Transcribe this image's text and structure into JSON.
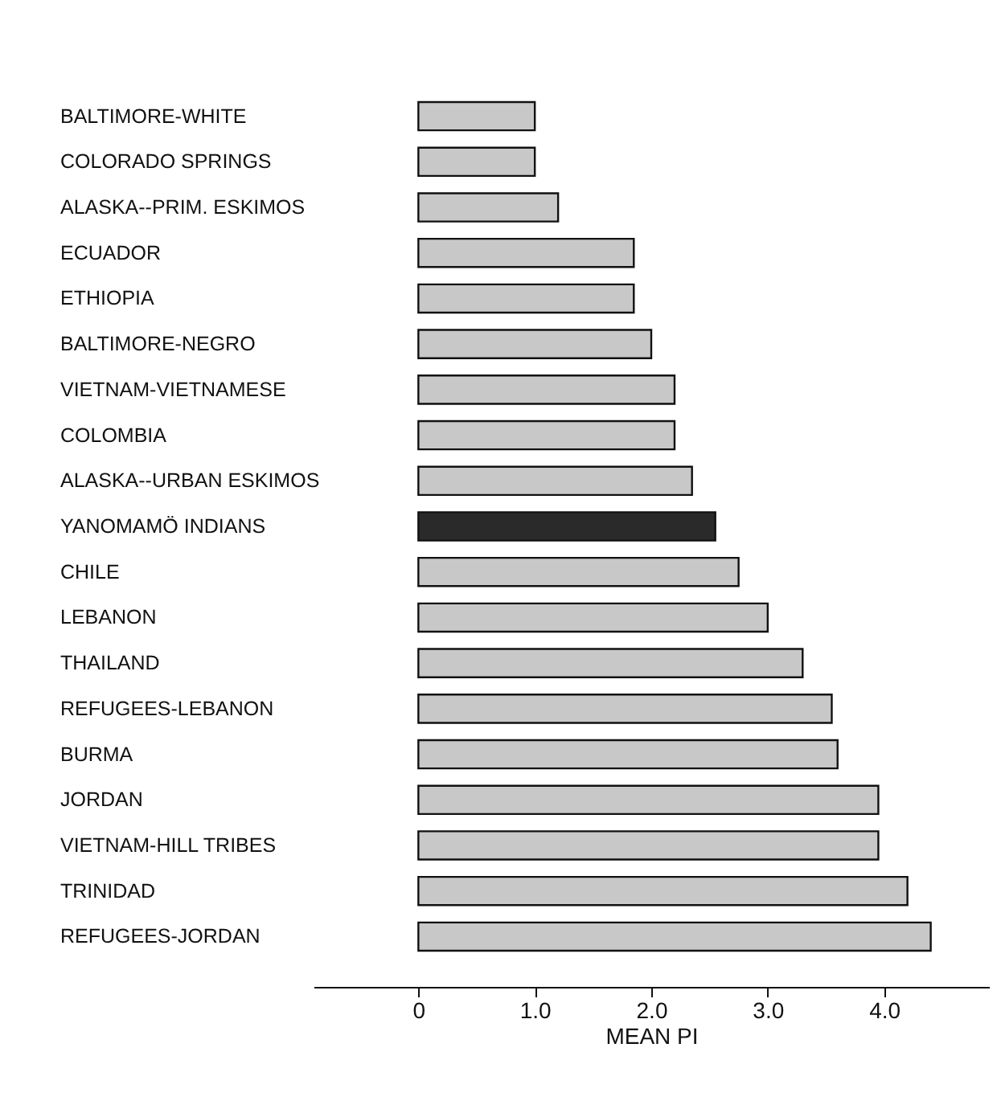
{
  "chart_data": {
    "type": "bar",
    "orientation": "horizontal",
    "xlabel": "MEAN PI",
    "categories": [
      "BALTIMORE-WHITE",
      "COLORADO SPRINGS",
      "ALASKA--PRIM. ESKIMOS",
      "ECUADOR",
      "ETHIOPIA",
      "BALTIMORE-NEGRO",
      "VIETNAM-VIETNAMESE",
      "COLOMBIA",
      "ALASKA--URBAN ESKIMOS",
      "YANOMAMÖ INDIANS",
      "CHILE",
      "LEBANON",
      "THAILAND",
      "REFUGEES-LEBANON",
      "BURMA",
      "JORDAN",
      "VIETNAM-HILL TRIBES",
      "TRINIDAD",
      "REFUGEES-JORDAN"
    ],
    "values": [
      1.0,
      1.0,
      1.2,
      1.85,
      1.85,
      2.0,
      2.2,
      2.2,
      2.35,
      2.55,
      2.75,
      3.0,
      3.3,
      3.55,
      3.6,
      3.95,
      3.95,
      4.2,
      4.4
    ],
    "colors": [
      "#c8c8c8",
      "#c8c8c8",
      "#c8c8c8",
      "#c8c8c8",
      "#c8c8c8",
      "#c8c8c8",
      "#c8c8c8",
      "#c8c8c8",
      "#c8c8c8",
      "#2a2a2a",
      "#c8c8c8",
      "#c8c8c8",
      "#c8c8c8",
      "#c8c8c8",
      "#c8c8c8",
      "#c8c8c8",
      "#c8c8c8",
      "#c8c8c8",
      "#c8c8c8"
    ],
    "xlim": [
      -0.9,
      4.9
    ],
    "xticks": [
      0,
      {
        "value": 1,
        "label": "1.0"
      },
      {
        "value": 2,
        "label": "2.0"
      },
      {
        "value": 3,
        "label": "3.0"
      },
      {
        "value": 4,
        "label": "4.0"
      }
    ],
    "grid": false
  }
}
